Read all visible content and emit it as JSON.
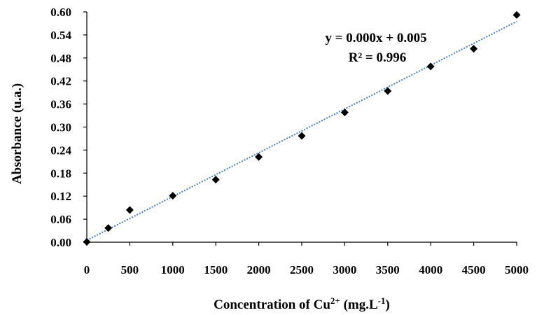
{
  "chart_data": {
    "type": "scatter",
    "xlabel_text": "Concentration of Cu",
    "xlabel_sup": "2+",
    "xlabel_unit": " (mg.L",
    "xlabel_unit_sup": "-1",
    "xlabel_close": ")",
    "ylabel": "Absorbance (u.a.)",
    "xlim": [
      0,
      5000
    ],
    "ylim": [
      0,
      0.6
    ],
    "x_ticks": [
      0,
      500,
      1000,
      1500,
      2000,
      2500,
      3000,
      3500,
      4000,
      4500,
      5000
    ],
    "y_ticks": [
      0.0,
      0.06,
      0.12,
      0.18,
      0.24,
      0.3,
      0.36,
      0.42,
      0.48,
      0.54,
      0.6
    ],
    "y_tick_labels": [
      "0.00",
      "0.06",
      "0.12",
      "0.18",
      "0.24",
      "0.30",
      "0.36",
      "0.42",
      "0.48",
      "0.54",
      "0.60"
    ],
    "points": {
      "x": [
        0,
        250,
        500,
        1000,
        1500,
        2000,
        2500,
        3000,
        3500,
        4000,
        4500,
        5000
      ],
      "y": [
        0.001,
        0.037,
        0.084,
        0.121,
        0.163,
        0.222,
        0.277,
        0.338,
        0.394,
        0.458,
        0.504,
        0.592
      ]
    },
    "trendline": {
      "slope": 0.000114,
      "intercept": 0.005,
      "style": "dotted",
      "color": "#4a7ebb"
    },
    "equation": "y = 0.000x + 0.005",
    "r2_label": "R² = 0.996",
    "grid": false,
    "legend": "none",
    "marker_color": "#000000"
  }
}
